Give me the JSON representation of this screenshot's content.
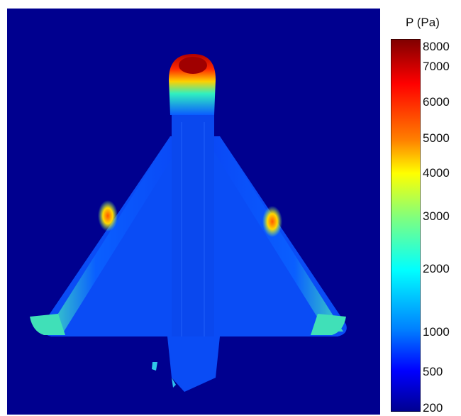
{
  "colorbar": {
    "title": "P (Pa)",
    "ticks": [
      {
        "label": "8000",
        "fraction": 0.02
      },
      {
        "label": "7000",
        "fraction": 0.075
      },
      {
        "label": "6000",
        "fraction": 0.17
      },
      {
        "label": "5000",
        "fraction": 0.267
      },
      {
        "label": "4000",
        "fraction": 0.36
      },
      {
        "label": "3000",
        "fraction": 0.476
      },
      {
        "label": "2000",
        "fraction": 0.617
      },
      {
        "label": "1000",
        "fraction": 0.786
      },
      {
        "label": "500",
        "fraction": 0.894
      },
      {
        "label": "200",
        "fraction": 0.995
      }
    ],
    "colors": [
      "#7f0000",
      "#ff0000",
      "#ff7f00",
      "#ffff00",
      "#7fff7f",
      "#00ffff",
      "#007fff",
      "#0000ff",
      "#00008f"
    ]
  },
  "background_color": "#00008f"
}
